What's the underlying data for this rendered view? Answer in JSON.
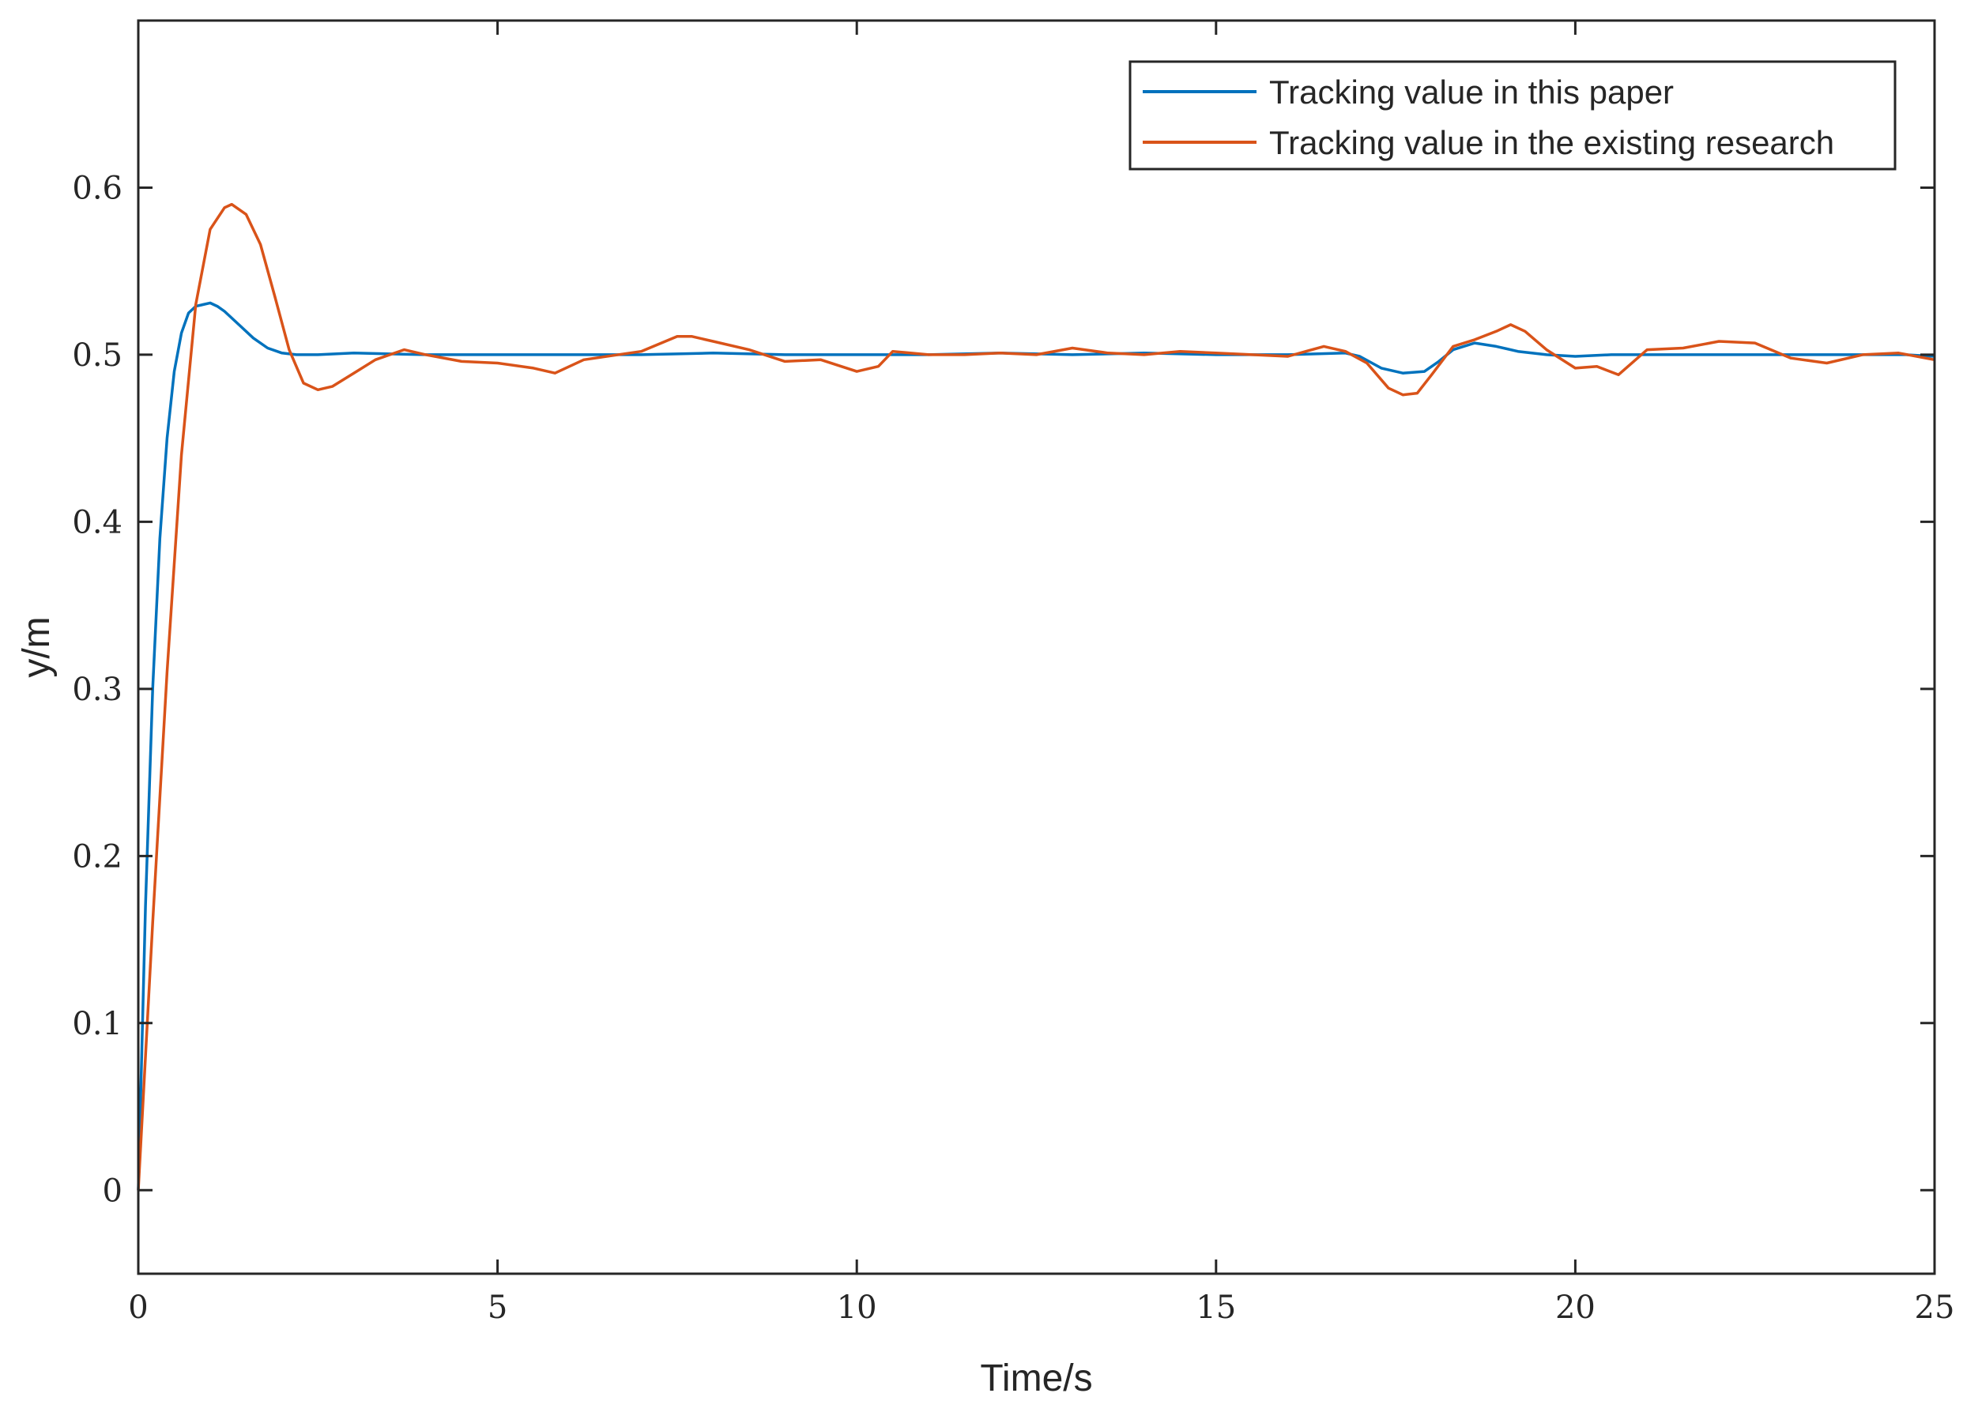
{
  "chart_data": {
    "type": "line",
    "title": "",
    "xlabel": "Time/s",
    "ylabel": "y/m",
    "xlim": [
      0,
      25
    ],
    "ylim": [
      -0.05,
      0.7
    ],
    "xticks": [
      0,
      5,
      10,
      15,
      20,
      25
    ],
    "xtick_labels": [
      "0",
      "5",
      "10",
      "15",
      "20",
      "25"
    ],
    "yticks": [
      0,
      0.1,
      0.2,
      0.3,
      0.4,
      0.5,
      0.6
    ],
    "ytick_labels": [
      "0",
      "0.1",
      "0.2",
      "0.3",
      "0.4",
      "0.5",
      "0.6"
    ],
    "grid": false,
    "legend_position": "top-right",
    "series": [
      {
        "name": "Tracking value in this paper",
        "color": "#0072BD",
        "x": [
          0,
          0.1,
          0.2,
          0.3,
          0.4,
          0.5,
          0.6,
          0.7,
          0.8,
          0.9,
          1.0,
          1.1,
          1.2,
          1.4,
          1.6,
          1.8,
          2.0,
          2.2,
          2.5,
          3.0,
          4.0,
          5.0,
          6.0,
          7.0,
          8.0,
          9.0,
          10.0,
          11.0,
          12.0,
          13.0,
          14.0,
          15.0,
          16.0,
          16.8,
          17.0,
          17.3,
          17.6,
          17.9,
          18.1,
          18.3,
          18.6,
          18.9,
          19.2,
          19.6,
          20.0,
          20.5,
          21.0,
          22.0,
          23.0,
          24.0,
          24.6,
          25.0
        ],
        "y": [
          0,
          0.17,
          0.3,
          0.39,
          0.45,
          0.49,
          0.513,
          0.525,
          0.529,
          0.53,
          0.531,
          0.529,
          0.526,
          0.518,
          0.51,
          0.504,
          0.501,
          0.5,
          0.5,
          0.501,
          0.5,
          0.5,
          0.5,
          0.5,
          0.501,
          0.5,
          0.5,
          0.5,
          0.501,
          0.5,
          0.501,
          0.5,
          0.5,
          0.501,
          0.499,
          0.492,
          0.489,
          0.49,
          0.496,
          0.503,
          0.507,
          0.505,
          0.502,
          0.5,
          0.499,
          0.5,
          0.5,
          0.5,
          0.5,
          0.5,
          0.5,
          0.499
        ]
      },
      {
        "name": "Tracking value in the existing research",
        "color": "#D95319",
        "x": [
          0,
          0.2,
          0.4,
          0.6,
          0.8,
          1.0,
          1.2,
          1.3,
          1.5,
          1.7,
          1.9,
          2.1,
          2.3,
          2.5,
          2.7,
          3.0,
          3.3,
          3.7,
          4.0,
          4.5,
          5.0,
          5.5,
          5.8,
          6.2,
          7.0,
          7.5,
          7.7,
          8.0,
          8.5,
          9.0,
          9.5,
          10.0,
          10.3,
          10.5,
          11.0,
          11.5,
          12.0,
          12.5,
          13.0,
          13.5,
          14.0,
          14.5,
          15.0,
          15.5,
          16.0,
          16.5,
          16.8,
          17.1,
          17.4,
          17.6,
          17.8,
          18.0,
          18.3,
          18.6,
          18.9,
          19.1,
          19.3,
          19.6,
          20.0,
          20.3,
          20.6,
          21.0,
          21.5,
          22.0,
          22.5,
          23.0,
          23.5,
          24.0,
          24.5,
          25.0
        ],
        "y": [
          0,
          0.16,
          0.31,
          0.44,
          0.53,
          0.575,
          0.588,
          0.59,
          0.584,
          0.566,
          0.535,
          0.503,
          0.483,
          0.479,
          0.481,
          0.489,
          0.497,
          0.503,
          0.5,
          0.496,
          0.495,
          0.492,
          0.489,
          0.497,
          0.502,
          0.511,
          0.511,
          0.508,
          0.503,
          0.496,
          0.497,
          0.49,
          0.493,
          0.502,
          0.5,
          0.5,
          0.501,
          0.5,
          0.504,
          0.501,
          0.5,
          0.502,
          0.501,
          0.5,
          0.499,
          0.505,
          0.502,
          0.495,
          0.48,
          0.476,
          0.477,
          0.488,
          0.505,
          0.509,
          0.514,
          0.518,
          0.514,
          0.503,
          0.492,
          0.493,
          0.488,
          0.503,
          0.504,
          0.508,
          0.507,
          0.498,
          0.495,
          0.5,
          0.501,
          0.497
        ]
      }
    ]
  }
}
